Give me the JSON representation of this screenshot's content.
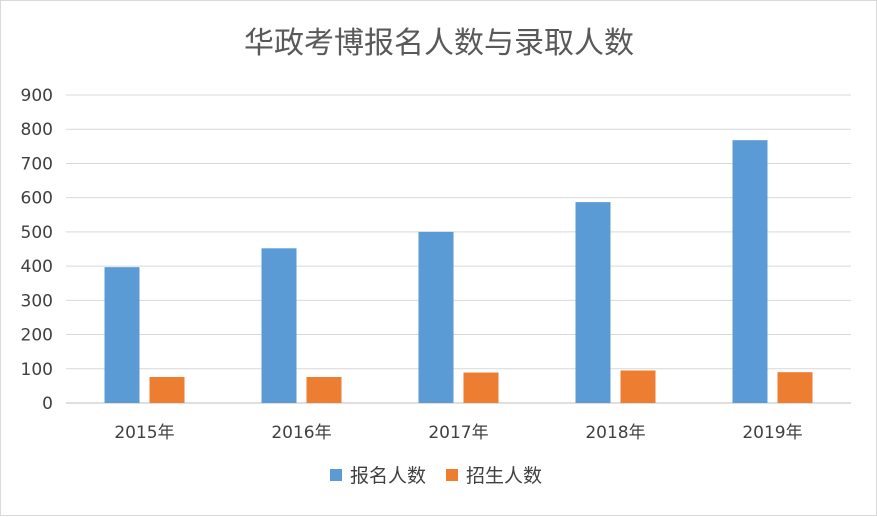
{
  "chart_data": {
    "type": "bar",
    "title": "华政考博报名人数与录取人数",
    "categories": [
      "2015年",
      "2016年",
      "2017年",
      "2018年",
      "2019年"
    ],
    "series": [
      {
        "name": "报名人数",
        "values": [
          397,
          452,
          500,
          587,
          768
        ],
        "color": "#5b9bd5"
      },
      {
        "name": "招生人数",
        "values": [
          76,
          76,
          89,
          95,
          90
        ],
        "color": "#ed7d31"
      }
    ],
    "ylim": [
      0,
      900
    ],
    "yticks": [
      0,
      100,
      200,
      300,
      400,
      500,
      600,
      700,
      800,
      900
    ],
    "grid": true,
    "legend_position": "bottom"
  }
}
